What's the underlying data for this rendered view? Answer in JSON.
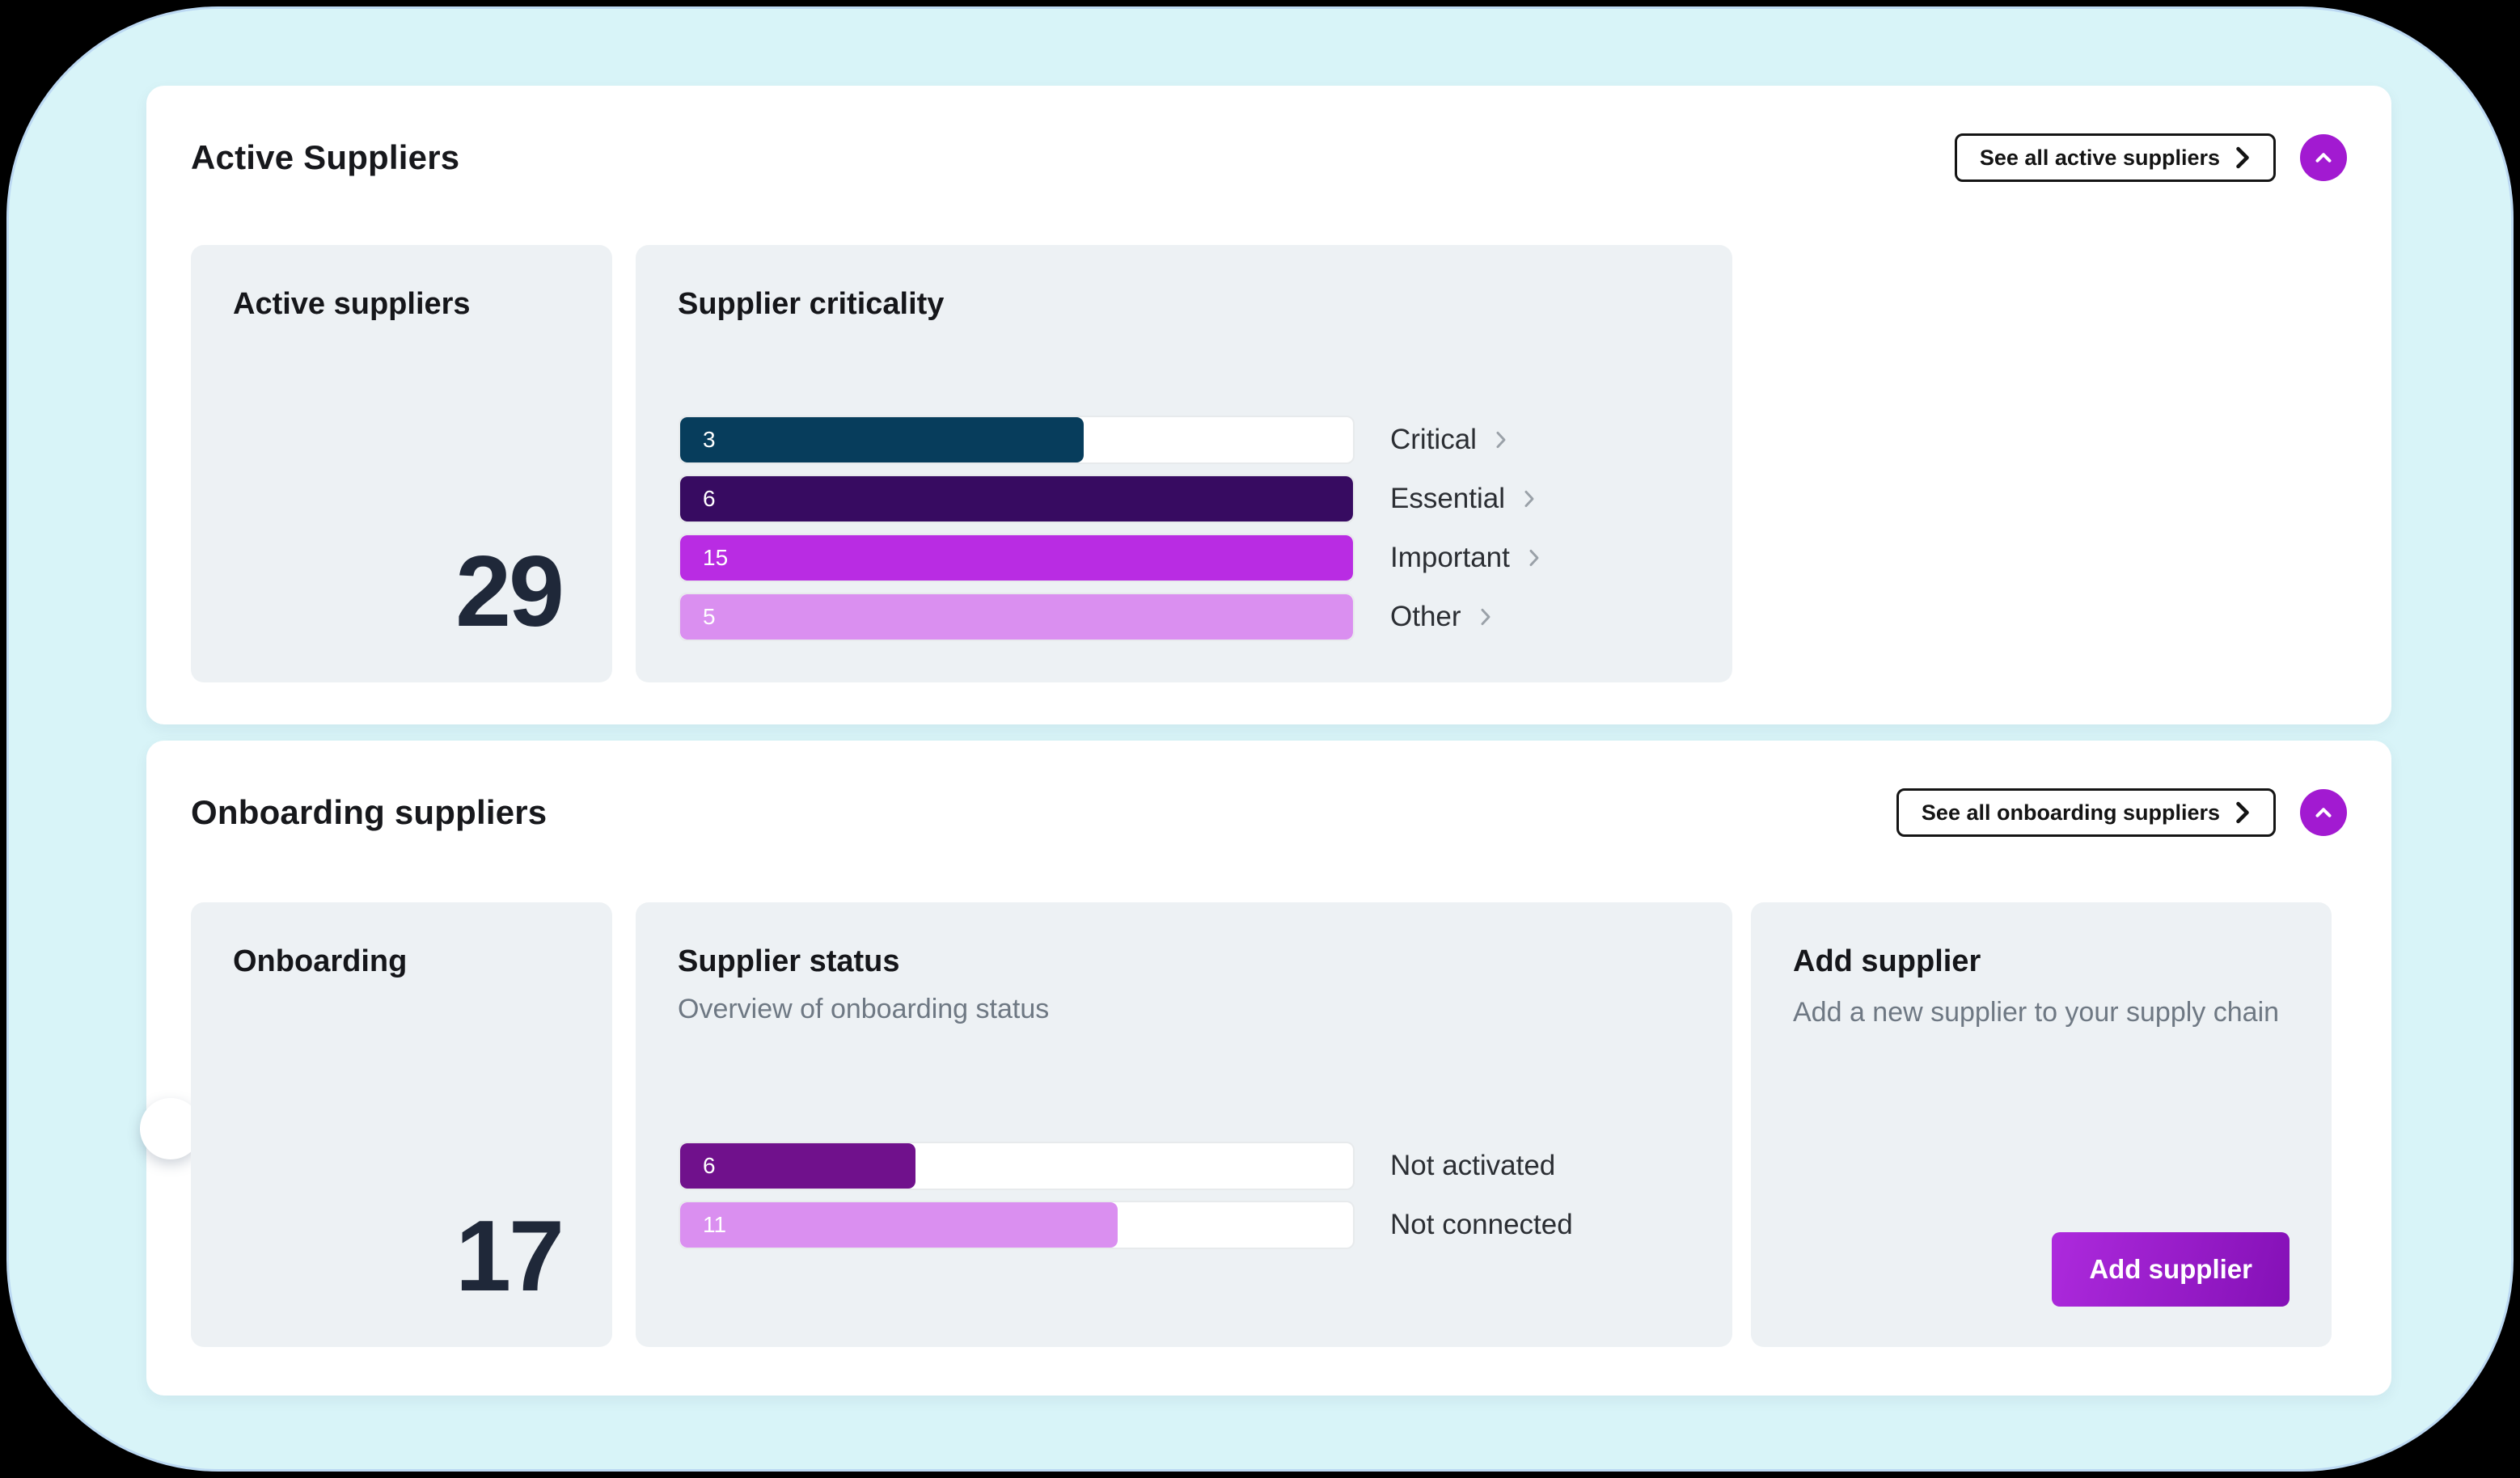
{
  "theme": {
    "surface_color": "#d8f4f8",
    "card_color": "#ffffff",
    "panel_color": "#edf1f4",
    "accent_purple": "#a21ad1",
    "number_color": "#1f2839"
  },
  "cards": {
    "active": {
      "title": "Active Suppliers",
      "see_all": "See all active suppliers",
      "count": {
        "label": "Active suppliers",
        "value": "29"
      },
      "criticality": {
        "title": "Supplier criticality",
        "bars": [
          {
            "value": "3",
            "label": "Critical",
            "color": "#073d5c",
            "fill_pct": 60
          },
          {
            "value": "6",
            "label": "Essential",
            "color": "#370b61",
            "fill_pct": 100
          },
          {
            "value": "15",
            "label": "Important",
            "color": "#b92ce3",
            "fill_pct": 100
          },
          {
            "value": "5",
            "label": "Other",
            "color": "#da8ff0",
            "fill_pct": 100
          }
        ]
      }
    },
    "onboarding": {
      "title": "Onboarding suppliers",
      "see_all": "See all onboarding suppliers",
      "count": {
        "label": "Onboarding",
        "value": "17"
      },
      "status": {
        "title": "Supplier status",
        "subtitle": "Overview of onboarding status",
        "bars": [
          {
            "value": "6",
            "label": "Not activated",
            "color": "#70118c",
            "fill_pct": 35
          },
          {
            "value": "11",
            "label": "Not connected",
            "color": "#da8ff0",
            "fill_pct": 65
          }
        ]
      },
      "add": {
        "title": "Add supplier",
        "description": "Add a new supplier to your supply chain",
        "button": "Add supplier"
      }
    }
  },
  "chart_data": [
    {
      "type": "bar",
      "title": "Supplier criticality",
      "categories": [
        "Critical",
        "Essential",
        "Important",
        "Other"
      ],
      "values": [
        3,
        6,
        15,
        5
      ],
      "orientation": "horizontal"
    },
    {
      "type": "bar",
      "title": "Supplier status",
      "subtitle": "Overview of onboarding status",
      "categories": [
        "Not activated",
        "Not connected"
      ],
      "values": [
        6,
        11
      ],
      "orientation": "horizontal"
    }
  ]
}
